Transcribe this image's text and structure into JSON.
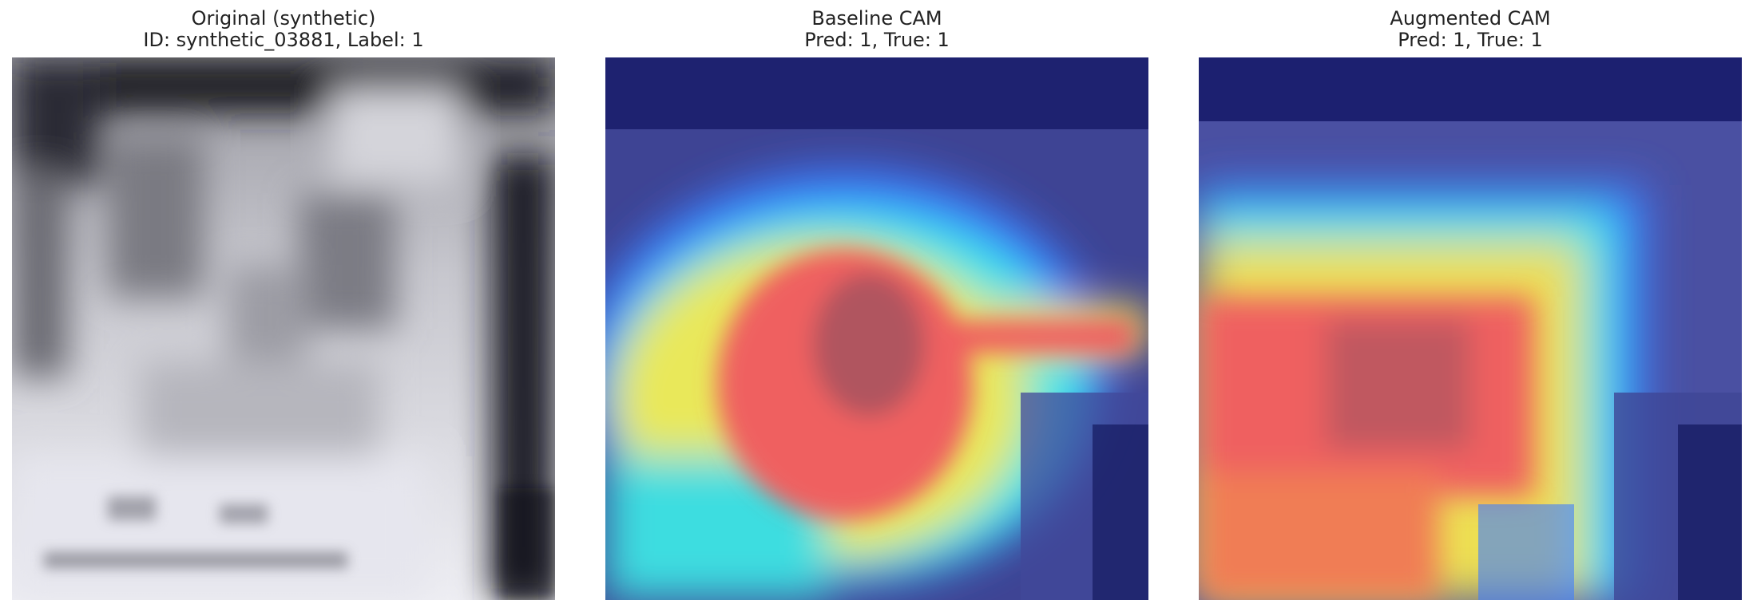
{
  "panels": [
    {
      "title_line1": "Original (synthetic)",
      "title_line2": "ID: synthetic_03881, Label: 1"
    },
    {
      "title_line1": "Baseline CAM",
      "title_line2": "Pred: 1, True: 1"
    },
    {
      "title_line1": "Augmented CAM",
      "title_line2": "Pred: 1, True: 1"
    }
  ]
}
